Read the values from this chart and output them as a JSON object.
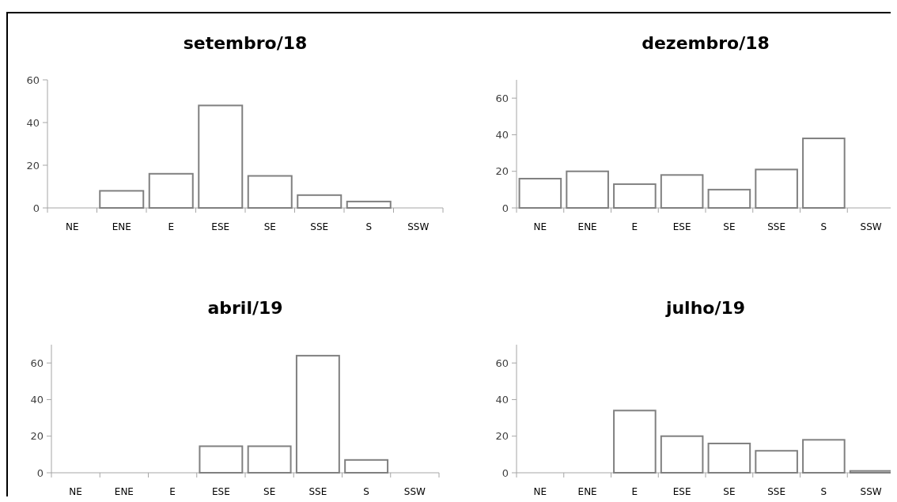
{
  "chart_data": [
    {
      "type": "bar",
      "title": "setembro/18",
      "categories": [
        "NE",
        "ENE",
        "E",
        "ESE",
        "SE",
        "SSE",
        "S",
        "SSW"
      ],
      "values": [
        0,
        8,
        16,
        48,
        15,
        6,
        3,
        0
      ],
      "color": "#ffffff",
      "ylim": [
        0,
        60
      ],
      "yticks": [
        0,
        20,
        40,
        60
      ],
      "grid": false
    },
    {
      "type": "bar",
      "title": "dezembro/18",
      "categories": [
        "NE",
        "ENE",
        "E",
        "ESE",
        "SE",
        "SSE",
        "S",
        "SSW"
      ],
      "values": [
        16,
        20,
        13,
        18,
        10,
        21,
        38,
        0
      ],
      "color": "#ffffff",
      "ylim": [
        0,
        70
      ],
      "yticks": [
        0,
        20,
        40,
        60
      ],
      "grid": false
    },
    {
      "type": "bar",
      "title": "abril/19",
      "categories": [
        "NE",
        "ENE",
        "E",
        "ESE",
        "SE",
        "SSE",
        "S",
        "SSW"
      ],
      "values": [
        0,
        0,
        0,
        14.5,
        14.5,
        64,
        7,
        0
      ],
      "color": "#ffffff",
      "ylim": [
        0,
        70
      ],
      "yticks": [
        0,
        20,
        40,
        60
      ],
      "grid": false
    },
    {
      "type": "bar",
      "title": "julho/19",
      "categories": [
        "NE",
        "ENE",
        "E",
        "ESE",
        "SE",
        "SSE",
        "S",
        "SSW"
      ],
      "values": [
        0,
        0,
        34,
        20,
        16,
        12,
        18,
        1
      ],
      "color": "#ffffff",
      "ylim": [
        0,
        70
      ],
      "yticks": [
        0,
        20,
        40,
        60
      ],
      "grid": false
    }
  ]
}
